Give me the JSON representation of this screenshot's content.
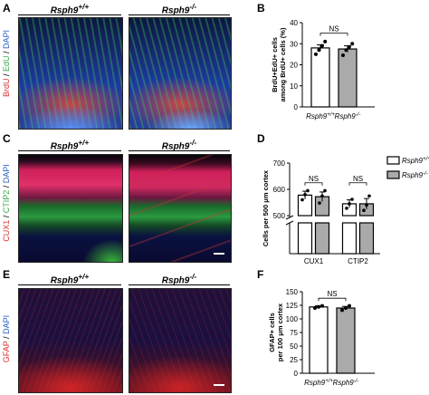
{
  "panels": {
    "A": {
      "letter": "A",
      "genotypes": [
        "Rsph9+/+",
        "Rsph9-/-"
      ],
      "stain_label": [
        {
          "text": "BrdU",
          "color": "#d9302c"
        },
        {
          "text": " / ",
          "color": "#000000"
        },
        {
          "text": "EdU",
          "color": "#3aa64a"
        },
        {
          "text": " / ",
          "color": "#000000"
        },
        {
          "text": "DAPI",
          "color": "#2a5fc4"
        }
      ]
    },
    "C": {
      "letter": "C",
      "genotypes": [
        "Rsph9+/+",
        "Rsph9-/-"
      ],
      "stain_label": [
        {
          "text": "CUX1",
          "color": "#d9302c"
        },
        {
          "text": " / ",
          "color": "#000000"
        },
        {
          "text": "CTIP2",
          "color": "#3aa64a"
        },
        {
          "text": " / ",
          "color": "#000000"
        },
        {
          "text": "DAPI",
          "color": "#2a5fc4"
        }
      ]
    },
    "E": {
      "letter": "E",
      "genotypes": [
        "Rsph9+/+",
        "Rsph9-/-"
      ],
      "stain_label": [
        {
          "text": "GFAP",
          "color": "#d9302c"
        },
        {
          "text": " / ",
          "color": "#000000"
        },
        {
          "text": "DAPI",
          "color": "#2a5fc4"
        }
      ]
    },
    "B": {
      "letter": "B"
    },
    "D": {
      "letter": "D"
    },
    "F": {
      "letter": "F"
    }
  },
  "chart_data": [
    {
      "id": "B",
      "type": "bar",
      "categories": [
        "Rsph9+/+",
        "Rsph9-/-"
      ],
      "values": [
        28,
        27.5
      ],
      "errors": [
        1.5,
        1.5
      ],
      "points": [
        [
          25,
          27,
          29,
          31
        ],
        [
          24.5,
          27,
          28.5,
          30
        ]
      ],
      "bar_colors": [
        "#ffffff",
        "#aaaaaa"
      ],
      "ylabel_lines": [
        "BrdU+EdU+ cells",
        "among BrdU+ cells (%)"
      ],
      "ylim": [
        0,
        40
      ],
      "yticks": [
        0,
        10,
        20,
        30,
        40
      ],
      "significance": "NS"
    },
    {
      "id": "D",
      "type": "bar",
      "groups": [
        "CUX1",
        "CTIP2"
      ],
      "series": [
        {
          "name": "Rsph9+/+",
          "values": [
            578,
            545
          ],
          "errors": [
            15,
            15
          ],
          "points": [
            [
              560,
              580,
              595
            ],
            [
              528,
              545,
              562
            ]
          ],
          "color": "#ffffff"
        },
        {
          "name": "Rsph9-/-",
          "values": [
            572,
            545
          ],
          "errors": [
            18,
            20
          ],
          "points": [
            [
              548,
              575,
              595
            ],
            [
              520,
              540,
              575
            ]
          ],
          "color": "#aaaaaa"
        }
      ],
      "ylabel": "Cells per 500 μm cortex",
      "ylim": [
        0,
        700
      ],
      "yticks": [
        500,
        600,
        700
      ],
      "axis_break": [
        0,
        480
      ],
      "significance": [
        "NS",
        "NS"
      ],
      "legend_position": "top-right"
    },
    {
      "id": "F",
      "type": "bar",
      "categories": [
        "Rsph9+/+",
        "Rsph9-/-"
      ],
      "values": [
        122,
        120
      ],
      "errors": [
        2,
        3
      ],
      "points": [
        [
          120,
          122,
          124
        ],
        [
          116,
          120,
          124
        ]
      ],
      "bar_colors": [
        "#ffffff",
        "#aaaaaa"
      ],
      "ylabel_lines": [
        "GFAP+ cells",
        "per 100 μm cortex"
      ],
      "ylim": [
        0,
        150
      ],
      "yticks": [
        0,
        25,
        50,
        75,
        100,
        125,
        150
      ],
      "significance": "NS"
    }
  ]
}
